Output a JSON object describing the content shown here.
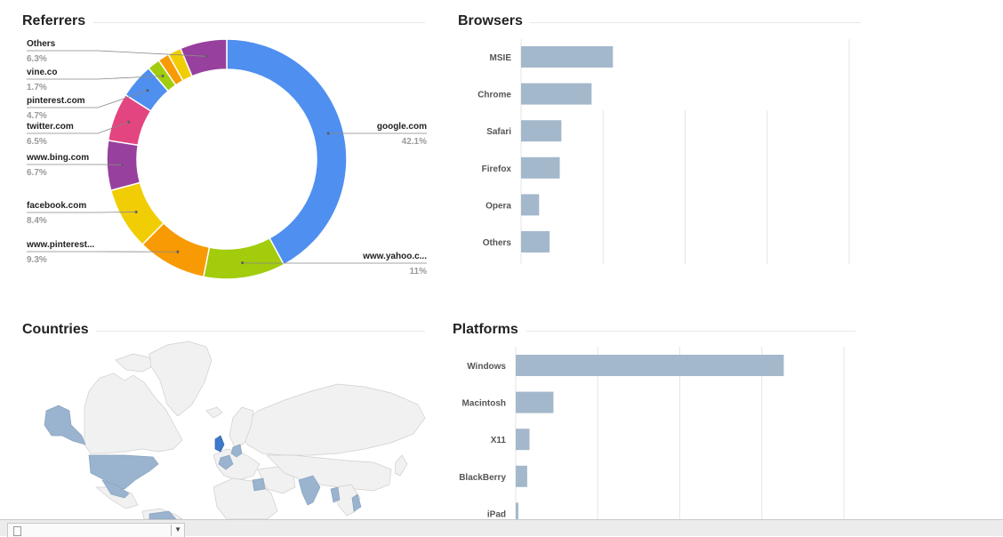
{
  "referrers": {
    "title": "Referrers",
    "items": [
      {
        "name": "google.com",
        "pct": "42.1%",
        "value": 42.1,
        "color": "#4f8ff0"
      },
      {
        "name": "www.yahoo.c...",
        "pct": "11%",
        "value": 11.0,
        "color": "#a2cc0c"
      },
      {
        "name": "www.pinterest...",
        "pct": "9.3%",
        "value": 9.3,
        "color": "#f79a04"
      },
      {
        "name": "facebook.com",
        "pct": "8.4%",
        "value": 8.4,
        "color": "#f0cd04"
      },
      {
        "name": "www.bing.com",
        "pct": "6.7%",
        "value": 6.7,
        "color": "#98409e"
      },
      {
        "name": "twitter.com",
        "pct": "6.5%",
        "value": 6.5,
        "color": "#e24580"
      },
      {
        "name": "pinterest.com",
        "pct": "4.7%",
        "value": 4.7,
        "color": "#4f8ff0"
      },
      {
        "name": "vine.co",
        "pct": "1.7%",
        "value": 1.7,
        "color": "#a2cc0c"
      },
      {
        "name": "",
        "pct": "",
        "value": 1.5,
        "color": "#f79a04"
      },
      {
        "name": "",
        "pct": "",
        "value": 1.8,
        "color": "#f0cd04"
      },
      {
        "name": "Others",
        "pct": "6.3%",
        "value": 6.3,
        "color": "#98409e"
      }
    ]
  },
  "browsers": {
    "title": "Browsers",
    "bar_color": "#a4b8cc",
    "max": 100,
    "items": [
      {
        "label": "MSIE",
        "value": 28
      },
      {
        "label": "Chrome",
        "value": 21.5
      },
      {
        "label": "Safari",
        "value": 12.3
      },
      {
        "label": "Firefox",
        "value": 11.8
      },
      {
        "label": "Opera",
        "value": 5.5
      },
      {
        "label": "Others",
        "value": 8.7
      }
    ]
  },
  "countries": {
    "title": "Countries",
    "highlight_color": "#9ab3cf",
    "strong_color": "#3c79c9"
  },
  "platforms": {
    "title": "Platforms",
    "bar_color": "#a4b8cc",
    "max": 100,
    "items": [
      {
        "label": "Windows",
        "value": 81.7
      },
      {
        "label": "Macintosh",
        "value": 11.5
      },
      {
        "label": "X11",
        "value": 4.2
      },
      {
        "label": "BlackBerry",
        "value": 3.5
      },
      {
        "label": "iPad",
        "value": 0.8
      }
    ]
  }
}
